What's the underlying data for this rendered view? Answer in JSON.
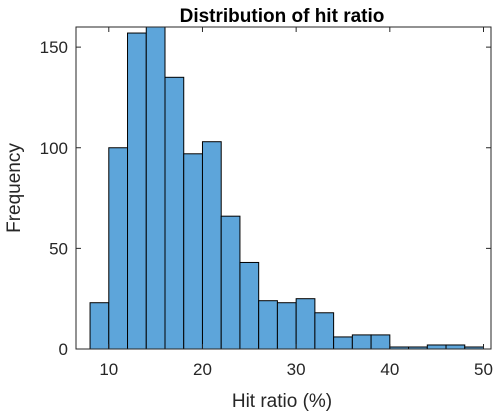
{
  "chart_data": {
    "type": "bar",
    "subtype": "histogram",
    "title": "Distribution of hit ratio",
    "xlabel": "Hit ratio (%)",
    "ylabel": "Frequency",
    "xlim": [
      6.5,
      50.8
    ],
    "ylim": [
      0,
      160
    ],
    "xticks": [
      10,
      20,
      30,
      40,
      50
    ],
    "yticks": [
      0,
      50,
      100,
      150
    ],
    "bin_edges": [
      8,
      10,
      12,
      14,
      16,
      18,
      20,
      22,
      24,
      26,
      28,
      30,
      32,
      34,
      36,
      38,
      40,
      42,
      44,
      46,
      48,
      50
    ],
    "values": [
      23,
      100,
      157,
      160,
      135,
      97,
      103,
      66,
      43,
      24,
      23,
      25,
      18,
      6,
      7,
      7,
      1,
      1,
      2,
      2,
      1
    ],
    "grid": false,
    "box": true
  },
  "colors": {
    "bar_fill": "#5DA5DA",
    "bar_edge": "#000000",
    "axis": "#262626",
    "background": "#ffffff"
  }
}
